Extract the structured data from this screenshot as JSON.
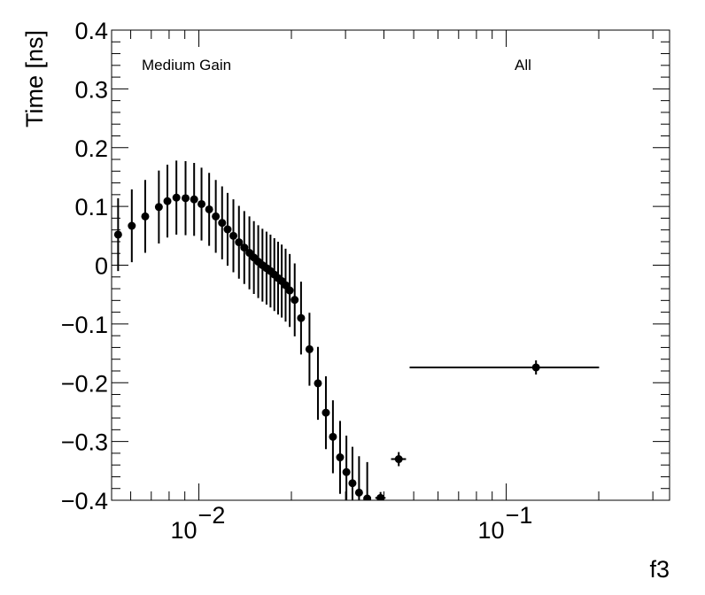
{
  "chart_data": {
    "type": "scatter",
    "title": "",
    "xlabel": "f3",
    "ylabel": "Time [ns]",
    "xscale": "log",
    "xlim": [
      0.0052,
      0.34
    ],
    "ylim": [
      -0.4,
      0.4
    ],
    "yticks": [
      -0.4,
      -0.3,
      -0.2,
      -0.1,
      0,
      0.1,
      0.2,
      0.3,
      0.4
    ],
    "ytick_labels": [
      "−0.4",
      "−0.3",
      "−0.2",
      "−0.1",
      "0",
      "0.1",
      "0.2",
      "0.3",
      "0.4"
    ],
    "xticks_major": [
      {
        "value": 0.01,
        "base": "10",
        "exponent": "−2"
      },
      {
        "value": 0.1,
        "base": "10",
        "exponent": "−1"
      }
    ],
    "annotations": {
      "left": "Medium Gain",
      "right": "All"
    },
    "series": [
      {
        "name": "Medium Gain, All",
        "points": [
          {
            "x": 0.00546,
            "y": 0.052,
            "xerr": 0.00014,
            "yerr": 0.062
          },
          {
            "x": 0.00605,
            "y": 0.067,
            "xerr": 0.00015,
            "yerr": 0.062
          },
          {
            "x": 0.00669,
            "y": 0.083,
            "xerr": 0.00017,
            "yerr": 0.062
          },
          {
            "x": 0.00741,
            "y": 0.099,
            "xerr": 0.00019,
            "yerr": 0.062
          },
          {
            "x": 0.0079,
            "y": 0.109,
            "xerr": 0.0001,
            "yerr": 0.062
          },
          {
            "x": 0.00845,
            "y": 0.115,
            "xerr": 0.0001,
            "yerr": 0.063
          },
          {
            "x": 0.00905,
            "y": 0.114,
            "xerr": 0.0001,
            "yerr": 0.063
          },
          {
            "x": 0.00965,
            "y": 0.112,
            "xerr": 0.0001,
            "yerr": 0.062
          },
          {
            "x": 0.0102,
            "y": 0.104,
            "xerr": 0.0001,
            "yerr": 0.062
          },
          {
            "x": 0.0108,
            "y": 0.095,
            "xerr": 0.0001,
            "yerr": 0.062
          },
          {
            "x": 0.01135,
            "y": 0.083,
            "xerr": 0.0001,
            "yerr": 0.062
          },
          {
            "x": 0.0119,
            "y": 0.072,
            "xerr": 0.0001,
            "yerr": 0.062
          },
          {
            "x": 0.0124,
            "y": 0.061,
            "xerr": 0.0001,
            "yerr": 0.062
          },
          {
            "x": 0.01295,
            "y": 0.05,
            "xerr": 0.0001,
            "yerr": 0.062
          },
          {
            "x": 0.0135,
            "y": 0.039,
            "xerr": 0.0001,
            "yerr": 0.062
          },
          {
            "x": 0.01405,
            "y": 0.03,
            "xerr": 0.0001,
            "yerr": 0.062
          },
          {
            "x": 0.0146,
            "y": 0.021,
            "xerr": 0.0001,
            "yerr": 0.062
          },
          {
            "x": 0.0151,
            "y": 0.013,
            "xerr": 0.0001,
            "yerr": 0.062
          },
          {
            "x": 0.0156,
            "y": 0.006,
            "xerr": 0.0001,
            "yerr": 0.062
          },
          {
            "x": 0.0161,
            "y": 0.0,
            "xerr": 0.0001,
            "yerr": 0.062
          },
          {
            "x": 0.0166,
            "y": -0.005,
            "xerr": 0.0001,
            "yerr": 0.062
          },
          {
            "x": 0.0171,
            "y": -0.01,
            "xerr": 0.0001,
            "yerr": 0.062
          },
          {
            "x": 0.0176,
            "y": -0.016,
            "xerr": 0.0001,
            "yerr": 0.062
          },
          {
            "x": 0.0181,
            "y": -0.022,
            "xerr": 0.0001,
            "yerr": 0.062
          },
          {
            "x": 0.0186,
            "y": -0.027,
            "xerr": 0.0001,
            "yerr": 0.062
          },
          {
            "x": 0.01915,
            "y": -0.034,
            "xerr": 0.0001,
            "yerr": 0.062
          },
          {
            "x": 0.01975,
            "y": -0.043,
            "xerr": 0.0001,
            "yerr": 0.062
          },
          {
            "x": 0.0205,
            "y": -0.059,
            "xerr": 0.0003,
            "yerr": 0.062
          },
          {
            "x": 0.0215,
            "y": -0.09,
            "xerr": 0.0003,
            "yerr": 0.062
          },
          {
            "x": 0.0229,
            "y": -0.143,
            "xerr": 0.0004,
            "yerr": 0.062
          },
          {
            "x": 0.0244,
            "y": -0.201,
            "xerr": 0.0004,
            "yerr": 0.062
          },
          {
            "x": 0.0259,
            "y": -0.251,
            "xerr": 0.0004,
            "yerr": 0.062
          },
          {
            "x": 0.0273,
            "y": -0.292,
            "xerr": 0.0004,
            "yerr": 0.062
          },
          {
            "x": 0.0288,
            "y": -0.327,
            "xerr": 0.0004,
            "yerr": 0.062
          },
          {
            "x": 0.0302,
            "y": -0.352,
            "xerr": 0.0004,
            "yerr": 0.062
          },
          {
            "x": 0.0316,
            "y": -0.371,
            "xerr": 0.0004,
            "yerr": 0.062
          },
          {
            "x": 0.0332,
            "y": -0.387,
            "xerr": 0.0006,
            "yerr": 0.062
          },
          {
            "x": 0.0353,
            "y": -0.397,
            "xerr": 0.0008,
            "yerr": 0.062
          },
          {
            "x": 0.039,
            "y": -0.396,
            "xerr": 0.0015,
            "yerr": 0.01
          },
          {
            "x": 0.0447,
            "y": -0.33,
            "xerr": 0.0025,
            "yerr": 0.012
          },
          {
            "x": 0.125,
            "y": -0.174,
            "xerr_low": 0.0765,
            "xerr_high": 0.0755,
            "yerr": 0.012
          }
        ]
      }
    ]
  }
}
